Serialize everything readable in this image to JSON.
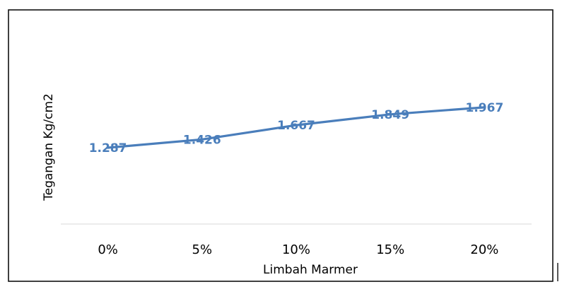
{
  "chart_data": {
    "type": "line",
    "title": "",
    "xlabel": "Limbah Marmer",
    "ylabel": "Tegangan Kg/cm2",
    "categories": [
      "0%",
      "5%",
      "10%",
      "15%",
      "20%"
    ],
    "series": [
      {
        "values": [
          1.287,
          1.426,
          1.667,
          1.849,
          1.967
        ],
        "labels": [
          "1.287",
          "1.426",
          "1.667",
          "1.849",
          "1.967"
        ],
        "color": "#4a7ebb"
      }
    ],
    "ylim": [
      0,
      3.3
    ],
    "grid": false,
    "legend": "none"
  }
}
